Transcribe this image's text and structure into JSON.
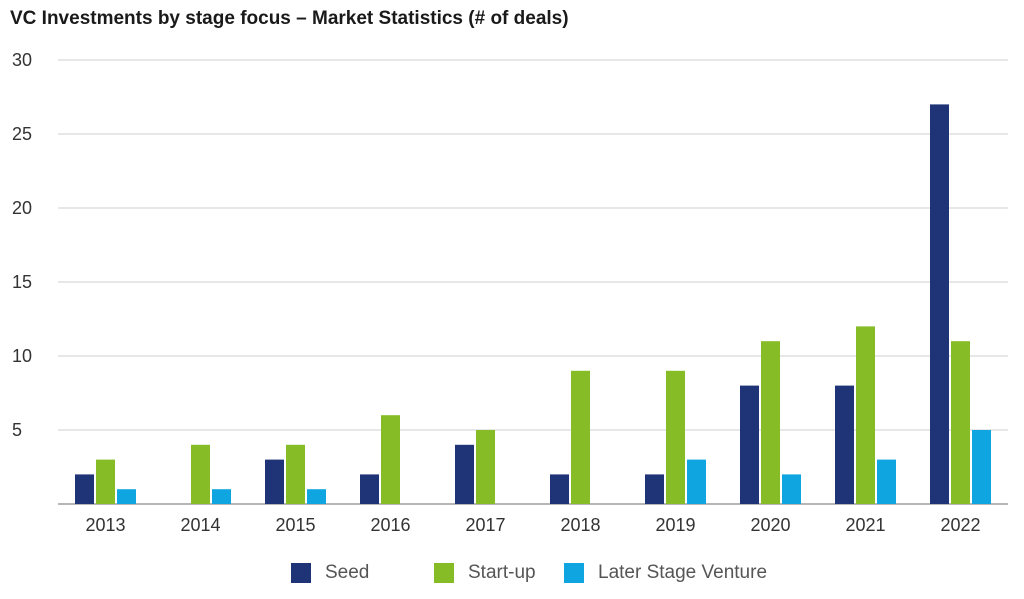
{
  "chart_data": {
    "type": "bar",
    "title": "VC Investments by stage focus – Market Statistics (# of deals)",
    "xlabel": "",
    "ylabel": "",
    "categories": [
      "2013",
      "2014",
      "2015",
      "2016",
      "2017",
      "2018",
      "2019",
      "2020",
      "2021",
      "2022"
    ],
    "series": [
      {
        "name": "Seed",
        "color": "#1f3476",
        "values": [
          2,
          0,
          3,
          2,
          4,
          2,
          2,
          8,
          8,
          27
        ]
      },
      {
        "name": "Start-up",
        "color": "#86bc25",
        "values": [
          3,
          4,
          4,
          6,
          5,
          9,
          9,
          11,
          12,
          11
        ]
      },
      {
        "name": "Later Stage Venture",
        "color": "#0fa5e0",
        "values": [
          1,
          1,
          1,
          0,
          0,
          0,
          3,
          2,
          3,
          5
        ]
      }
    ],
    "ylim": [
      0,
      30
    ],
    "yticks": [
      30,
      25,
      20,
      15,
      10,
      5
    ],
    "grid": true,
    "legend_position": "bottom"
  }
}
